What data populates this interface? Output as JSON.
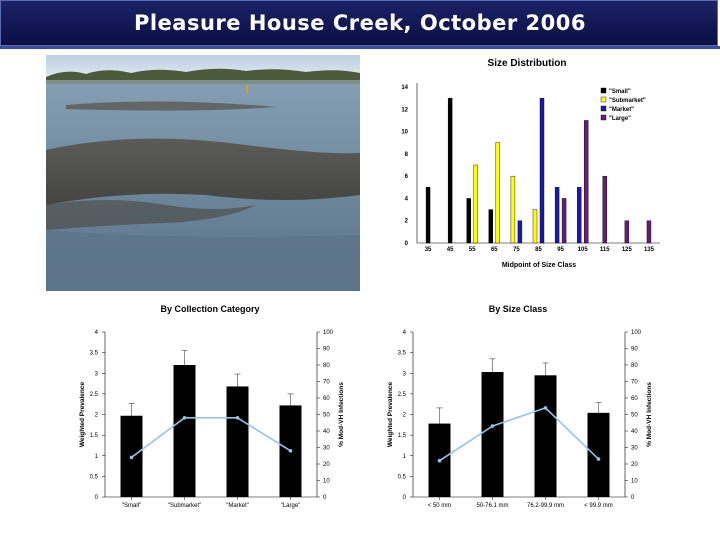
{
  "page": {
    "title": "Pleasure House Creek, October 2006"
  },
  "photo": {
    "icon": "oyster-reef-photo"
  },
  "colors": {
    "title_bg": "#0b0f45",
    "small": "#000000",
    "submarket": "#ffff00",
    "market": "#1a1aa8",
    "large": "#6a1a7a",
    "line": "#99c2e8"
  },
  "chart_data": [
    {
      "type": "bar",
      "title": "Size Distribution",
      "xlabel": "Midpoint of Size Class",
      "ylabel": "",
      "categories": [
        "35",
        "45",
        "55",
        "65",
        "75",
        "85",
        "95",
        "105",
        "115",
        "125",
        "135"
      ],
      "ylim": [
        0,
        14
      ],
      "yticks": [
        0,
        2,
        4,
        6,
        8,
        10,
        12,
        14
      ],
      "legend": "top-right",
      "series": [
        {
          "name": "\"Small\"",
          "values": [
            5,
            13,
            4,
            3,
            0,
            0,
            0,
            0,
            0,
            0,
            0
          ]
        },
        {
          "name": "\"Submarket\"",
          "values": [
            0,
            0,
            7,
            9,
            6,
            3,
            0,
            0,
            0,
            0,
            0
          ]
        },
        {
          "name": "\"Market\"",
          "values": [
            0,
            0,
            0,
            0,
            2,
            13,
            5,
            5,
            0,
            0,
            0
          ]
        },
        {
          "name": "\"Large\"",
          "values": [
            0,
            0,
            0,
            0,
            0,
            0,
            4,
            11,
            6,
            2,
            2
          ]
        }
      ]
    },
    {
      "type": "bar",
      "title": "By Collection Category",
      "xlabel": "",
      "ylabel": "Weighted Prevalence",
      "y2label": "% Mod-VH Infections",
      "categories": [
        "\"Small\"",
        "\"Submarket\"",
        "\"Market\"",
        "\"Large\""
      ],
      "ylim": [
        0,
        4
      ],
      "yticks": [
        "0",
        "0.5",
        "1",
        "1.5",
        "2",
        "2.5",
        "3",
        "3.5",
        "4"
      ],
      "y2lim": [
        0,
        100
      ],
      "y2ticks": [
        "0",
        "10",
        "20",
        "30",
        "40",
        "50",
        "60",
        "70",
        "80",
        "90",
        "100"
      ],
      "bars": [
        1.97,
        3.2,
        2.68,
        2.22
      ],
      "errors": [
        0.3,
        0.35,
        0.3,
        0.28
      ],
      "line": [
        24,
        48,
        48,
        28
      ]
    },
    {
      "type": "bar",
      "title": "By Size Class",
      "xlabel": "",
      "ylabel": "Weighted Prevalence",
      "y2label": "% Mod-VH Infections",
      "categories": [
        "< 50 mm",
        "50-76.1 mm",
        "76.2-99.9 mm",
        "< 99.9 mm"
      ],
      "ylim": [
        0,
        4
      ],
      "yticks": [
        "0",
        "0.5",
        "1",
        "1.5",
        "2",
        "2.5",
        "3",
        "3.5",
        "4"
      ],
      "y2lim": [
        0,
        100
      ],
      "y2ticks": [
        "0",
        "10",
        "20",
        "30",
        "40",
        "50",
        "60",
        "70",
        "80",
        "90",
        "100"
      ],
      "bars": [
        1.78,
        3.03,
        2.95,
        2.04
      ],
      "errors": [
        0.38,
        0.32,
        0.3,
        0.25
      ],
      "line": [
        22,
        43,
        54,
        23
      ]
    }
  ]
}
